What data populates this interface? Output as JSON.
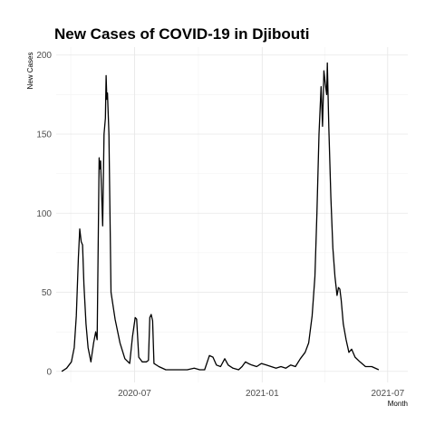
{
  "chart_data": {
    "type": "line",
    "title": "New Cases of COVID-19 in Djibouti",
    "xlabel": "Month",
    "ylabel": "New Cases",
    "grid": true,
    "legend": "none",
    "ylim": [
      -7,
      205
    ],
    "yticks": [
      0,
      50,
      100,
      150,
      200
    ],
    "xlim": [
      "2020-03-10",
      "2021-07-30"
    ],
    "xticks": [
      {
        "date": "2020-07-01",
        "label": "2020-07"
      },
      {
        "date": "2021-01-01",
        "label": "2021-01"
      },
      {
        "date": "2021-07-01",
        "label": "2021-07"
      }
    ],
    "series": [
      {
        "color": "#000000",
        "points": [
          [
            "2020-03-18",
            0
          ],
          [
            "2020-03-25",
            2
          ],
          [
            "2020-04-01",
            6
          ],
          [
            "2020-04-05",
            15
          ],
          [
            "2020-04-08",
            35
          ],
          [
            "2020-04-11",
            72
          ],
          [
            "2020-04-13",
            90
          ],
          [
            "2020-04-15",
            82
          ],
          [
            "2020-04-17",
            80
          ],
          [
            "2020-04-19",
            55
          ],
          [
            "2020-04-22",
            30
          ],
          [
            "2020-04-25",
            15
          ],
          [
            "2020-04-29",
            6
          ],
          [
            "2020-05-03",
            18
          ],
          [
            "2020-05-06",
            25
          ],
          [
            "2020-05-08",
            20
          ],
          [
            "2020-05-11",
            135
          ],
          [
            "2020-05-12",
            128
          ],
          [
            "2020-05-13",
            133
          ],
          [
            "2020-05-14",
            120
          ],
          [
            "2020-05-16",
            92
          ],
          [
            "2020-05-18",
            150
          ],
          [
            "2020-05-20",
            160
          ],
          [
            "2020-05-21",
            187
          ],
          [
            "2020-05-22",
            172
          ],
          [
            "2020-05-23",
            176
          ],
          [
            "2020-05-25",
            150
          ],
          [
            "2020-05-28",
            50
          ],
          [
            "2020-06-03",
            33
          ],
          [
            "2020-06-10",
            18
          ],
          [
            "2020-06-17",
            8
          ],
          [
            "2020-06-24",
            5
          ],
          [
            "2020-06-28",
            22
          ],
          [
            "2020-07-02",
            34
          ],
          [
            "2020-07-04",
            33
          ],
          [
            "2020-07-07",
            9
          ],
          [
            "2020-07-12",
            6
          ],
          [
            "2020-07-18",
            6
          ],
          [
            "2020-07-21",
            7
          ],
          [
            "2020-07-23",
            34
          ],
          [
            "2020-07-25",
            36
          ],
          [
            "2020-07-27",
            32
          ],
          [
            "2020-07-29",
            5
          ],
          [
            "2020-08-05",
            3
          ],
          [
            "2020-08-15",
            1
          ],
          [
            "2020-08-25",
            1
          ],
          [
            "2020-09-05",
            1
          ],
          [
            "2020-09-15",
            1
          ],
          [
            "2020-09-25",
            2
          ],
          [
            "2020-10-03",
            1
          ],
          [
            "2020-10-10",
            1
          ],
          [
            "2020-10-17",
            10
          ],
          [
            "2020-10-22",
            9
          ],
          [
            "2020-10-27",
            4
          ],
          [
            "2020-11-02",
            3
          ],
          [
            "2020-11-08",
            8
          ],
          [
            "2020-11-13",
            4
          ],
          [
            "2020-11-20",
            2
          ],
          [
            "2020-11-28",
            1
          ],
          [
            "2020-12-03",
            3
          ],
          [
            "2020-12-08",
            6
          ],
          [
            "2020-12-12",
            5
          ],
          [
            "2020-12-17",
            4
          ],
          [
            "2020-12-24",
            3
          ],
          [
            "2020-12-31",
            5
          ],
          [
            "2021-01-07",
            4
          ],
          [
            "2021-01-14",
            3
          ],
          [
            "2021-01-21",
            2
          ],
          [
            "2021-01-28",
            3
          ],
          [
            "2021-02-04",
            2
          ],
          [
            "2021-02-11",
            4
          ],
          [
            "2021-02-18",
            3
          ],
          [
            "2021-02-25",
            8
          ],
          [
            "2021-03-04",
            12
          ],
          [
            "2021-03-09",
            18
          ],
          [
            "2021-03-14",
            35
          ],
          [
            "2021-03-18",
            60
          ],
          [
            "2021-03-21",
            100
          ],
          [
            "2021-03-24",
            150
          ],
          [
            "2021-03-27",
            180
          ],
          [
            "2021-03-29",
            155
          ],
          [
            "2021-03-31",
            190
          ],
          [
            "2021-04-02",
            182
          ],
          [
            "2021-04-04",
            175
          ],
          [
            "2021-04-05",
            195
          ],
          [
            "2021-04-07",
            155
          ],
          [
            "2021-04-10",
            110
          ],
          [
            "2021-04-13",
            78
          ],
          [
            "2021-04-16",
            60
          ],
          [
            "2021-04-19",
            48
          ],
          [
            "2021-04-21",
            53
          ],
          [
            "2021-04-23",
            52
          ],
          [
            "2021-04-25",
            45
          ],
          [
            "2021-04-28",
            30
          ],
          [
            "2021-05-02",
            20
          ],
          [
            "2021-05-06",
            12
          ],
          [
            "2021-05-10",
            14
          ],
          [
            "2021-05-15",
            9
          ],
          [
            "2021-05-22",
            6
          ],
          [
            "2021-05-30",
            3
          ],
          [
            "2021-06-08",
            3
          ],
          [
            "2021-06-18",
            1
          ]
        ]
      }
    ]
  }
}
